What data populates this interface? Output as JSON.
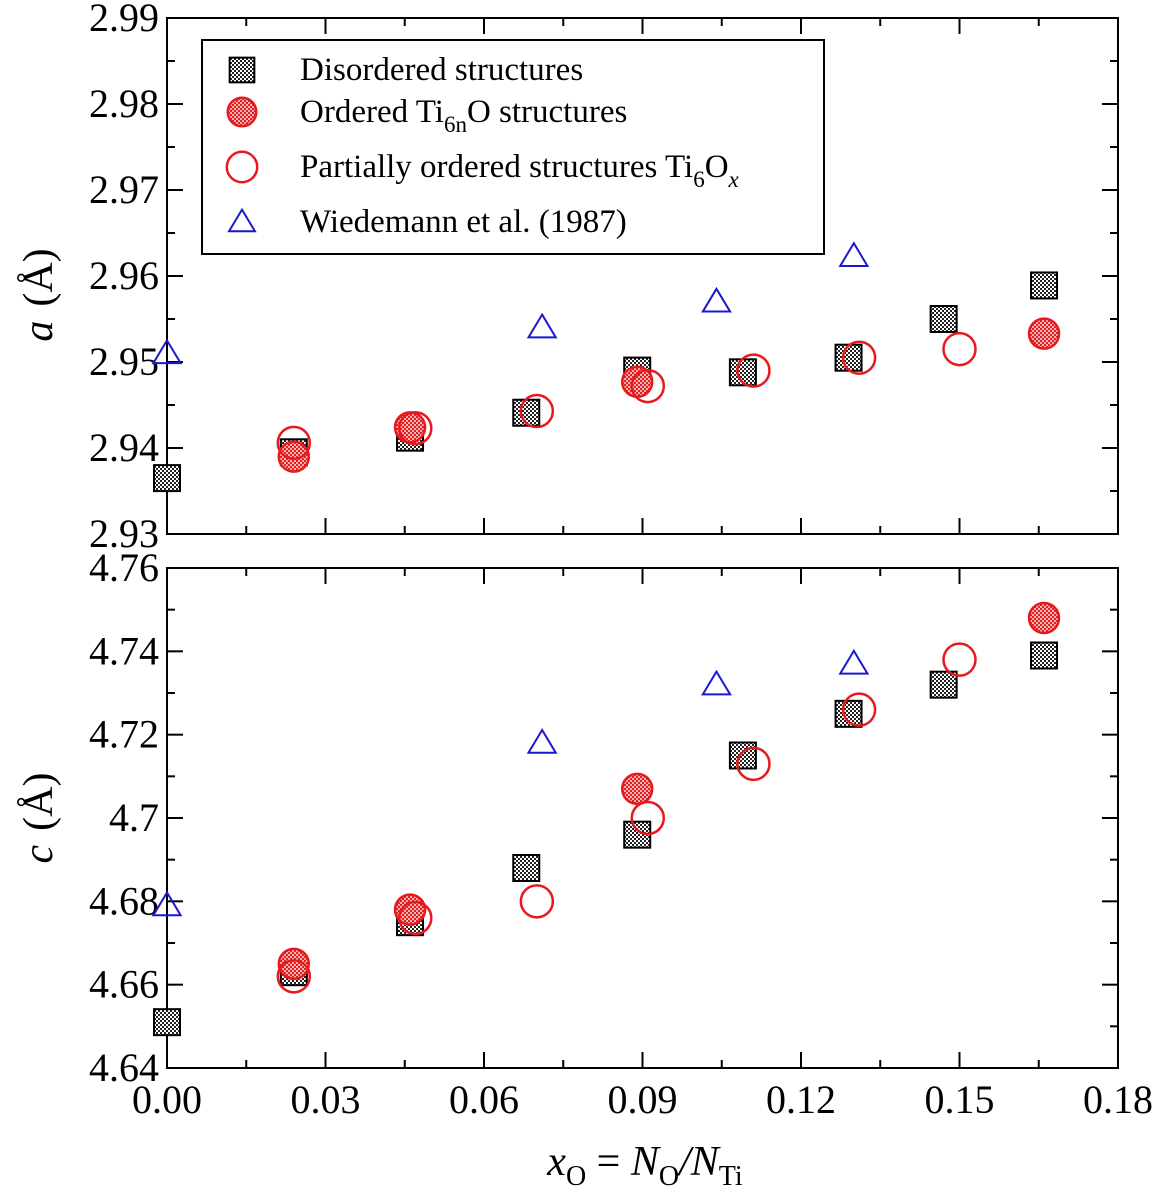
{
  "chart_data": [
    {
      "type": "scatter",
      "panel": "top",
      "ylabel_var": "a",
      "ylabel_unit": "(Å)",
      "xlim": [
        0.0,
        0.18
      ],
      "ylim": [
        2.93,
        2.99
      ],
      "yticks": [
        2.93,
        2.94,
        2.95,
        2.96,
        2.97,
        2.98,
        2.99
      ],
      "ytick_labels": [
        "2.93",
        "2.94",
        "2.95",
        "2.96",
        "2.97",
        "2.98",
        "2.99"
      ],
      "series": [
        {
          "name": "Disordered structures",
          "marker": "square",
          "points": [
            [
              0.0,
              2.9365
            ],
            [
              0.024,
              2.9395
            ],
            [
              0.046,
              2.9412
            ],
            [
              0.068,
              2.9441
            ],
            [
              0.089,
              2.949
            ],
            [
              0.109,
              2.9488
            ],
            [
              0.129,
              2.9505
            ],
            [
              0.147,
              2.955
            ],
            [
              0.166,
              2.9589
            ]
          ]
        },
        {
          "name": "Ordered Ti6nO structures",
          "marker": "filled-circle",
          "points": [
            [
              0.024,
              2.939
            ],
            [
              0.046,
              2.9424
            ],
            [
              0.089,
              2.9477
            ],
            [
              0.166,
              2.9533
            ]
          ]
        },
        {
          "name": "Partially ordered structures Ti6Ox",
          "marker": "open-circle",
          "points": [
            [
              0.024,
              2.9406
            ],
            [
              0.047,
              2.9423
            ],
            [
              0.07,
              2.9443
            ],
            [
              0.091,
              2.9472
            ],
            [
              0.111,
              2.949
            ],
            [
              0.131,
              2.9505
            ],
            [
              0.15,
              2.9515
            ]
          ]
        },
        {
          "name": "Wiedemann et al. (1987)",
          "marker": "triangle",
          "points": [
            [
              0.0,
              2.951
            ],
            [
              0.071,
              2.954
            ],
            [
              0.104,
              2.957
            ],
            [
              0.13,
              2.9623
            ]
          ]
        }
      ]
    },
    {
      "type": "scatter",
      "panel": "bottom",
      "ylabel_var": "c",
      "ylabel_unit": "(Å)",
      "xlim": [
        0.0,
        0.18
      ],
      "ylim": [
        4.64,
        4.76
      ],
      "yticks": [
        4.64,
        4.66,
        4.68,
        4.7,
        4.72,
        4.74,
        4.76
      ],
      "ytick_labels": [
        "4.64",
        "4.66",
        "4.68",
        "4.7",
        "4.72",
        "4.74",
        "4.76"
      ],
      "xticks": [
        0.0,
        0.03,
        0.06,
        0.09,
        0.12,
        0.15,
        0.18
      ],
      "xtick_labels": [
        "0.00",
        "0.03",
        "0.06",
        "0.09",
        "0.12",
        "0.15",
        "0.18"
      ],
      "series": [
        {
          "name": "Disordered structures",
          "marker": "square",
          "points": [
            [
              0.0,
              4.651
            ],
            [
              0.024,
              4.663
            ],
            [
              0.046,
              4.675
            ],
            [
              0.068,
              4.688
            ],
            [
              0.089,
              4.696
            ],
            [
              0.109,
              4.715
            ],
            [
              0.129,
              4.725
            ],
            [
              0.147,
              4.732
            ],
            [
              0.166,
              4.739
            ]
          ]
        },
        {
          "name": "Ordered Ti6nO structures",
          "marker": "filled-circle",
          "points": [
            [
              0.024,
              4.665
            ],
            [
              0.046,
              4.678
            ],
            [
              0.089,
              4.707
            ],
            [
              0.166,
              4.748
            ]
          ]
        },
        {
          "name": "Partially ordered structures Ti6Ox",
          "marker": "open-circle",
          "points": [
            [
              0.024,
              4.662
            ],
            [
              0.047,
              4.676
            ],
            [
              0.07,
              4.68
            ],
            [
              0.091,
              4.7
            ],
            [
              0.111,
              4.713
            ],
            [
              0.131,
              4.726
            ],
            [
              0.15,
              4.738
            ]
          ]
        },
        {
          "name": "Wiedemann et al. (1987)",
          "marker": "triangle",
          "points": [
            [
              0.0,
              4.679
            ],
            [
              0.071,
              4.718
            ],
            [
              0.104,
              4.732
            ],
            [
              0.13,
              4.737
            ]
          ]
        }
      ]
    }
  ],
  "legend": {
    "position": "top-left of top panel",
    "disordered": "Disordered structures",
    "ordered_pre": "Ordered Ti",
    "ordered_sub": "6n",
    "ordered_post": "O structures",
    "partial_pre": "Partially ordered structures Ti",
    "partial_sub1": "6",
    "partial_mid": "O",
    "partial_sub2": "x",
    "wiedemann": "Wiedemann et al. (1987)"
  },
  "xlabel": {
    "var": "x",
    "var_sub": "O",
    "eq": " = ",
    "num": "N",
    "num_sub": "O",
    "slash": "/",
    "den": "N",
    "den_sub": "Ti"
  },
  "colors": {
    "square_fill": "#555555",
    "circle_red": "#e8191c",
    "circle_fill": "#f08a8a",
    "triangle_blue": "#1a1acc",
    "axis": "#000000"
  }
}
